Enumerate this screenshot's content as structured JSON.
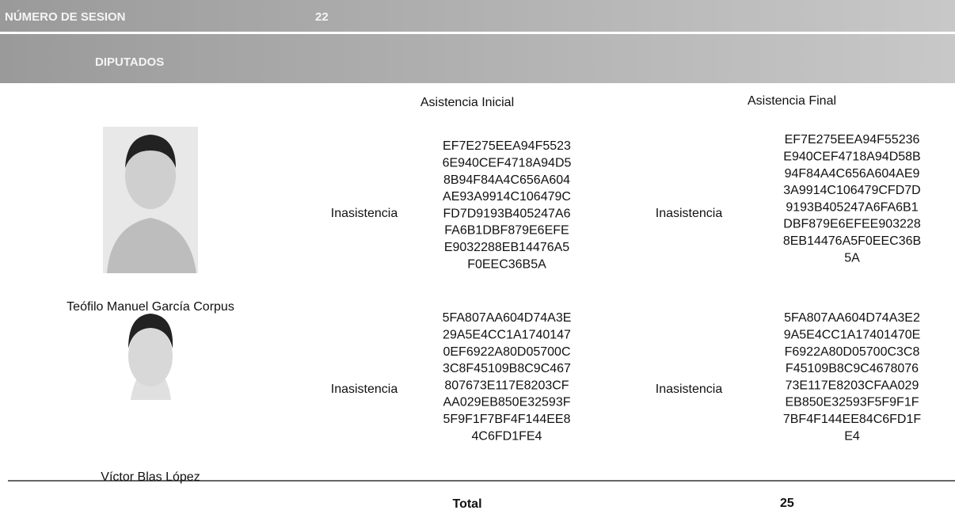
{
  "header": {
    "session_label": "NÚMERO DE SESION",
    "session_number": "22",
    "section": "DIPUTADOS"
  },
  "columns": {
    "initial": "Asistencia Inicial",
    "final": "Asistencia Final"
  },
  "rows": [
    {
      "name": "Teófilo Manuel García Corpus",
      "initial_status": "Inasistencia",
      "initial_hash": [
        "EF7E275EEA94F5523",
        "6E940CEF4718A94D5",
        "8B94F84A4C656A604",
        "AE93A9914C106479C",
        "FD7D9193B405247A6",
        "FA6B1DBF879E6EFE",
        "E9032288EB14476A5",
        "F0EEC36B5A"
      ],
      "final_status": "Inasistencia",
      "final_hash": [
        "EF7E275EEA94F55236",
        "E940CEF4718A94D58B",
        "94F84A4C656A604AE9",
        "3A9914C106479CFD7D",
        "9193B405247A6FA6B1",
        "DBF879E6EFEE903228",
        "8EB14476A5F0EEC36B",
        "5A"
      ]
    },
    {
      "name": "Víctor Blas López",
      "initial_status": "Inasistencia",
      "initial_hash": [
        "5FA807AA604D74A3E",
        "29A5E4CC1A1740147",
        "0EF6922A80D05700C",
        "3C8F45109B8C9C467",
        "807673E117E8203CF",
        "AA029EB850E32593F",
        "5F9F1F7BF4F144EE8",
        "4C6FD1FE4"
      ],
      "final_status": "Inasistencia",
      "final_hash": [
        "5FA807AA604D74A3E2",
        "9A5E4CC1A17401470E",
        "F6922A80D05700C3C8",
        "F45109B8C9C4678076",
        "73E117E8203CFAA029",
        "EB850E32593F5F9F1F",
        "7BF4F144EE84C6FD1F",
        "E4"
      ]
    }
  ],
  "total": {
    "label": "Total",
    "value": "25"
  }
}
